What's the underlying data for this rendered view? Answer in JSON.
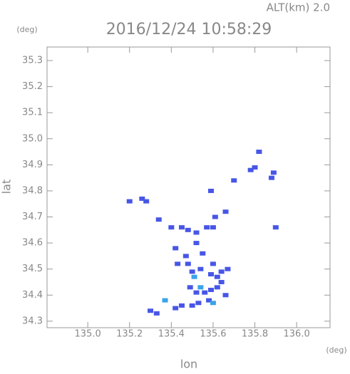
{
  "chart_data": {
    "type": "scatter",
    "title": "2016/12/24 10:58:29",
    "subtitle": "ALT(km) 2.0",
    "y_unit": "(deg)",
    "x_unit": "(deg)",
    "xlabel": "lon",
    "ylabel": "lat",
    "xlim": [
      134.805,
      136.16
    ],
    "ylim": [
      34.275,
      35.352
    ],
    "xticks": [
      {
        "value": 135.0,
        "label": "135.0"
      },
      135.2,
      135.4,
      135.6,
      135.8,
      {
        "value": 136.0,
        "label": "136.0"
      }
    ],
    "yticks": [
      34.3,
      34.4,
      34.5,
      34.6,
      34.7,
      34.8,
      34.9,
      {
        "value": 35.0,
        "label": "35.0"
      },
      35.1,
      35.2,
      35.3
    ],
    "series": [
      {
        "color": "#4756e6",
        "x": [
          135.2,
          135.26,
          135.28,
          135.34,
          135.4,
          135.45,
          135.48,
          135.52,
          135.57,
          135.6,
          135.61,
          135.59,
          135.66,
          135.7,
          135.78,
          135.8,
          135.82,
          135.88,
          135.89,
          135.9,
          135.42,
          135.43,
          135.48,
          135.5,
          135.54,
          135.6,
          135.64,
          135.59,
          135.62,
          135.64,
          135.49,
          135.52,
          135.56,
          135.59,
          135.62,
          135.42,
          135.45,
          135.5,
          135.53,
          135.58,
          135.3,
          135.33,
          135.52,
          135.55,
          135.47,
          135.67,
          135.66
        ],
        "values": [
          34.76,
          34.77,
          34.76,
          34.69,
          34.66,
          34.66,
          34.65,
          34.64,
          34.66,
          34.66,
          34.7,
          34.8,
          34.72,
          34.84,
          34.88,
          34.89,
          34.95,
          34.85,
          34.87,
          34.66,
          34.58,
          34.52,
          34.52,
          34.49,
          34.5,
          34.52,
          34.49,
          34.48,
          34.47,
          34.45,
          34.43,
          34.41,
          34.41,
          34.42,
          34.43,
          34.35,
          34.36,
          34.36,
          34.37,
          34.38,
          34.34,
          34.33,
          34.6,
          34.56,
          34.55,
          34.5,
          34.4
        ]
      },
      {
        "color": "#3aa4e8",
        "x": [
          135.37,
          135.51,
          135.6,
          135.54
        ],
        "values": [
          34.38,
          34.47,
          34.37,
          34.43
        ]
      }
    ]
  }
}
